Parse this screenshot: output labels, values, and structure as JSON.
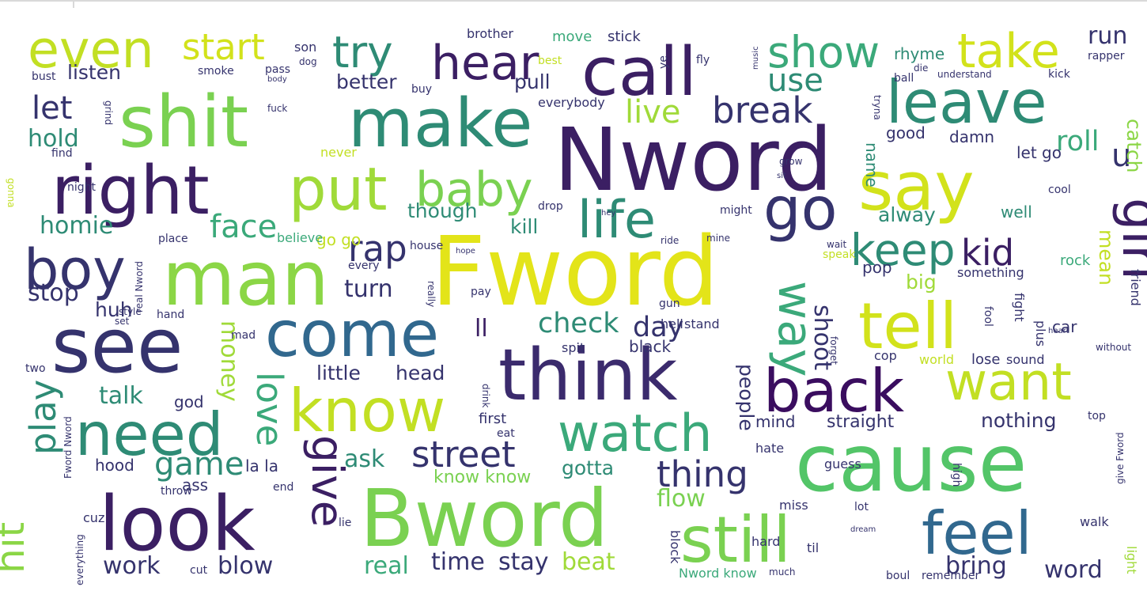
{
  "title": "",
  "words": [
    {
      "w": "Fword",
      "c": "#e3e419"
    },
    {
      "w": "Nword",
      "c": "#3b1f63"
    },
    {
      "w": "cause",
      "c": "#53c568"
    },
    {
      "w": "Bword",
      "c": "#7ad151"
    },
    {
      "w": "see",
      "c": "#35336d"
    },
    {
      "w": "man",
      "c": "#8bd646"
    },
    {
      "w": "look",
      "c": "#3b1f63"
    },
    {
      "w": "think",
      "c": "#3b2b6d"
    },
    {
      "w": "shit",
      "c": "#7ad151"
    },
    {
      "w": "make",
      "c": "#2e8b75"
    },
    {
      "w": "call",
      "c": "#3b1f63"
    },
    {
      "w": "right",
      "c": "#3b1f63"
    },
    {
      "w": "say",
      "c": "#d2e21b"
    },
    {
      "w": "tell",
      "c": "#d2e21b"
    },
    {
      "w": "still",
      "c": "#7ad151"
    },
    {
      "w": "come",
      "c": "#31688e"
    },
    {
      "w": "back",
      "c": "#3a0d5f"
    },
    {
      "w": "know",
      "c": "#c2df23"
    },
    {
      "w": "need",
      "c": "#2e8b75"
    },
    {
      "w": "leave",
      "c": "#2e8b75"
    },
    {
      "w": "put",
      "c": "#a0da39"
    },
    {
      "w": "feel",
      "c": "#31688e"
    },
    {
      "w": "go",
      "c": "#35336d"
    },
    {
      "w": "want",
      "c": "#c2df23"
    },
    {
      "w": "boy",
      "c": "#35336d"
    },
    {
      "w": "girl",
      "c": "#3b1f63"
    },
    {
      "w": "watch",
      "c": "#3ba97a"
    },
    {
      "w": "even",
      "c": "#c2df23"
    },
    {
      "w": "life",
      "c": "#2e8b75"
    },
    {
      "w": "hear",
      "c": "#3b1f63"
    },
    {
      "w": "take",
      "c": "#d2e21b"
    },
    {
      "w": "baby",
      "c": "#7ad151"
    },
    {
      "w": "give",
      "c": "#3b1f63"
    },
    {
      "w": "way",
      "c": "#3ba97a"
    },
    {
      "w": "show",
      "c": "#3ba97a"
    },
    {
      "w": "try",
      "c": "#2e8b75"
    },
    {
      "w": "start",
      "c": "#d2e21b"
    },
    {
      "w": "keep",
      "c": "#2e8b75"
    },
    {
      "w": "kid",
      "c": "#3b1f63"
    },
    {
      "w": "street",
      "c": "#35336d"
    },
    {
      "w": "thing",
      "c": "#35336d"
    },
    {
      "w": "hit",
      "c": "#8bd646"
    },
    {
      "w": "play",
      "c": "#2e8b75"
    },
    {
      "w": "love",
      "c": "#3ba97a"
    },
    {
      "w": "face",
      "c": "#3ba97a"
    },
    {
      "w": "break",
      "c": "#35336d"
    },
    {
      "w": "rap",
      "c": "#35336d"
    },
    {
      "w": "use",
      "c": "#2e8b75"
    },
    {
      "w": "live",
      "c": "#a0da39"
    },
    {
      "w": "game",
      "c": "#2e8b75"
    },
    {
      "w": "let",
      "c": "#35336d"
    },
    {
      "w": "u",
      "c": "#35336d"
    },
    {
      "w": "roll",
      "c": "#3ba97a"
    },
    {
      "w": "check",
      "c": "#2e8b75"
    },
    {
      "w": "day",
      "c": "#35336d"
    },
    {
      "w": "shoot",
      "c": "#35336d"
    },
    {
      "w": "money",
      "c": "#a0da39"
    },
    {
      "w": "hold",
      "c": "#2e8b75"
    },
    {
      "w": "homie",
      "c": "#2e8b75"
    },
    {
      "w": "stop",
      "c": "#35336d"
    },
    {
      "w": "turn",
      "c": "#35336d"
    },
    {
      "w": "talk",
      "c": "#2e8b75"
    },
    {
      "w": "ask",
      "c": "#2e8b75"
    },
    {
      "w": "run",
      "c": "#35336d"
    },
    {
      "w": "people",
      "c": "#35336d"
    },
    {
      "w": "mean",
      "c": "#c2df23"
    },
    {
      "w": "work",
      "c": "#35336d"
    },
    {
      "w": "blow",
      "c": "#35336d"
    },
    {
      "w": "real",
      "c": "#3ba97a"
    },
    {
      "w": "time",
      "c": "#35336d"
    },
    {
      "w": "stay",
      "c": "#35336d"
    },
    {
      "w": "beat",
      "c": "#a0da39"
    },
    {
      "w": "bring",
      "c": "#35336d"
    },
    {
      "w": "word",
      "c": "#35336d"
    },
    {
      "w": "little",
      "c": "#35336d"
    },
    {
      "w": "head",
      "c": "#35336d"
    },
    {
      "w": "nothing",
      "c": "#35336d"
    },
    {
      "w": "flow",
      "c": "#7ad151"
    },
    {
      "w": "gotta",
      "c": "#2e8b75"
    },
    {
      "w": "though",
      "c": "#2e8b75"
    },
    {
      "w": "kill",
      "c": "#2e8b75"
    },
    {
      "w": "alway",
      "c": "#2e8b75"
    },
    {
      "w": "huh",
      "c": "#35336d"
    },
    {
      "w": "pull",
      "c": "#35336d"
    },
    {
      "w": "better",
      "c": "#35336d"
    },
    {
      "w": "listen",
      "c": "#35336d"
    },
    {
      "w": "catch",
      "c": "#8bd646"
    },
    {
      "w": "big",
      "c": "#a0da39"
    },
    {
      "w": "ll",
      "c": "#3b1f63"
    },
    {
      "w": "hood",
      "c": "#35336d"
    },
    {
      "w": "ass",
      "c": "#35336d"
    },
    {
      "w": "la la",
      "c": "#35336d"
    },
    {
      "w": "know know",
      "c": "#7ad151"
    },
    {
      "w": "straight",
      "c": "#35336d"
    },
    {
      "w": "mind",
      "c": "#35336d"
    },
    {
      "w": "good",
      "c": "#35336d"
    },
    {
      "w": "damn",
      "c": "#35336d"
    },
    {
      "w": "let go",
      "c": "#35336d"
    },
    {
      "w": "rhyme",
      "c": "#2e8b75"
    },
    {
      "w": "car",
      "c": "#35336d"
    },
    {
      "w": "pop",
      "c": "#35336d"
    },
    {
      "w": "rock",
      "c": "#3ba97a"
    },
    {
      "w": "name",
      "c": "#2e8b75"
    },
    {
      "w": "god",
      "c": "#35336d"
    },
    {
      "w": "go go",
      "c": "#c2df23"
    },
    {
      "w": "well",
      "c": "#2e8b75"
    },
    {
      "w": "hell",
      "c": "#35336d"
    },
    {
      "w": "black",
      "c": "#35336d"
    },
    {
      "w": "stick",
      "c": "#35336d"
    },
    {
      "w": "move",
      "c": "#3ba97a"
    },
    {
      "w": "brother",
      "c": "#35336d"
    },
    {
      "w": "everybody",
      "c": "#35336d"
    },
    {
      "w": "son",
      "c": "#35336d"
    },
    {
      "w": "pass",
      "c": "#35336d"
    },
    {
      "w": "smoke",
      "c": "#35336d"
    },
    {
      "w": "bust",
      "c": "#35336d"
    },
    {
      "w": "fly",
      "c": "#35336d"
    },
    {
      "w": "ball",
      "c": "#35336d"
    },
    {
      "w": "understand",
      "c": "#35336d"
    },
    {
      "w": "kick",
      "c": "#35336d"
    },
    {
      "w": "rapper",
      "c": "#35336d"
    },
    {
      "w": "cool",
      "c": "#35336d"
    },
    {
      "w": "friend",
      "c": "#35336d"
    },
    {
      "w": "something",
      "c": "#35336d"
    },
    {
      "w": "fight",
      "c": "#35336d"
    },
    {
      "w": "plus",
      "c": "#35336d"
    },
    {
      "w": "gun",
      "c": "#35336d"
    },
    {
      "w": "stand",
      "c": "#35336d"
    },
    {
      "w": "spit",
      "c": "#35336d"
    },
    {
      "w": "cop",
      "c": "#35336d"
    },
    {
      "w": "world",
      "c": "#c2df23"
    },
    {
      "w": "lose",
      "c": "#35336d"
    },
    {
      "w": "sound",
      "c": "#35336d"
    },
    {
      "w": "first",
      "c": "#35336d"
    },
    {
      "w": "eat",
      "c": "#35336d"
    },
    {
      "w": "hate",
      "c": "#35336d"
    },
    {
      "w": "guess",
      "c": "#35336d"
    },
    {
      "w": "high",
      "c": "#35336d"
    },
    {
      "w": "top",
      "c": "#35336d"
    },
    {
      "w": "hard",
      "c": "#35336d"
    },
    {
      "w": "til",
      "c": "#35336d"
    },
    {
      "w": "miss",
      "c": "#35336d"
    },
    {
      "w": "lot",
      "c": "#35336d"
    },
    {
      "w": "walk",
      "c": "#35336d"
    },
    {
      "w": "block",
      "c": "#35336d"
    },
    {
      "w": "light",
      "c": "#a0da39"
    },
    {
      "w": "boul",
      "c": "#35336d"
    },
    {
      "w": "remember",
      "c": "#35336d"
    },
    {
      "w": "Nword know",
      "c": "#3ba97a"
    },
    {
      "w": "much",
      "c": "#35336d"
    },
    {
      "w": "cut",
      "c": "#35336d"
    },
    {
      "w": "end",
      "c": "#35336d"
    },
    {
      "w": "throw",
      "c": "#35336d"
    },
    {
      "w": "lie",
      "c": "#35336d"
    },
    {
      "w": "mad",
      "c": "#35336d"
    },
    {
      "w": "hand",
      "c": "#35336d"
    },
    {
      "w": "style",
      "c": "#35336d"
    },
    {
      "w": "set",
      "c": "#35336d"
    },
    {
      "w": "two",
      "c": "#35336d"
    },
    {
      "w": "cuz",
      "c": "#35336d"
    },
    {
      "w": "every",
      "c": "#35336d"
    },
    {
      "w": "house",
      "c": "#35336d"
    },
    {
      "w": "really",
      "c": "#35336d"
    },
    {
      "w": "believe",
      "c": "#3ba97a"
    },
    {
      "w": "place",
      "c": "#35336d"
    },
    {
      "w": "drop",
      "c": "#35336d"
    },
    {
      "w": "ride",
      "c": "#35336d"
    },
    {
      "w": "mine",
      "c": "#35336d"
    },
    {
      "w": "might",
      "c": "#35336d"
    },
    {
      "w": "wait",
      "c": "#35336d"
    },
    {
      "w": "speak",
      "c": "#c2df23"
    },
    {
      "w": "pay",
      "c": "#35336d"
    },
    {
      "w": "never",
      "c": "#c2df23"
    },
    {
      "w": "find",
      "c": "#35336d"
    },
    {
      "w": "grind",
      "c": "#35336d"
    },
    {
      "w": "fuck",
      "c": "#35336d"
    },
    {
      "w": "buy",
      "c": "#35336d"
    },
    {
      "w": "best",
      "c": "#c2df23"
    },
    {
      "w": "dog",
      "c": "#35336d"
    },
    {
      "w": "body",
      "c": "#35336d"
    },
    {
      "w": "gonna",
      "c": "#c2df23"
    },
    {
      "w": "night",
      "c": "#35336d"
    },
    {
      "w": "tryna",
      "c": "#35336d"
    },
    {
      "w": "grow",
      "c": "#35336d"
    },
    {
      "w": "hey",
      "c": "#35336d"
    },
    {
      "w": "fool",
      "c": "#35336d"
    },
    {
      "w": "heart",
      "c": "#35336d"
    },
    {
      "w": "without",
      "c": "#35336d"
    },
    {
      "w": "forget",
      "c": "#35336d"
    },
    {
      "w": "drink",
      "c": "#35336d"
    },
    {
      "w": "give Fword",
      "c": "#35336d"
    },
    {
      "w": "everything",
      "c": "#35336d"
    },
    {
      "w": "Fword Nword",
      "c": "#35336d"
    },
    {
      "w": "real Nword",
      "c": "#35336d"
    },
    {
      "w": "hope",
      "c": "#35336d"
    },
    {
      "w": "ye",
      "c": "#35336d"
    },
    {
      "w": "music",
      "c": "#35336d"
    },
    {
      "w": "die",
      "c": "#35336d"
    },
    {
      "w": "dream",
      "c": "#35336d"
    },
    {
      "w": "sit",
      "c": "#35336d"
    }
  ]
}
